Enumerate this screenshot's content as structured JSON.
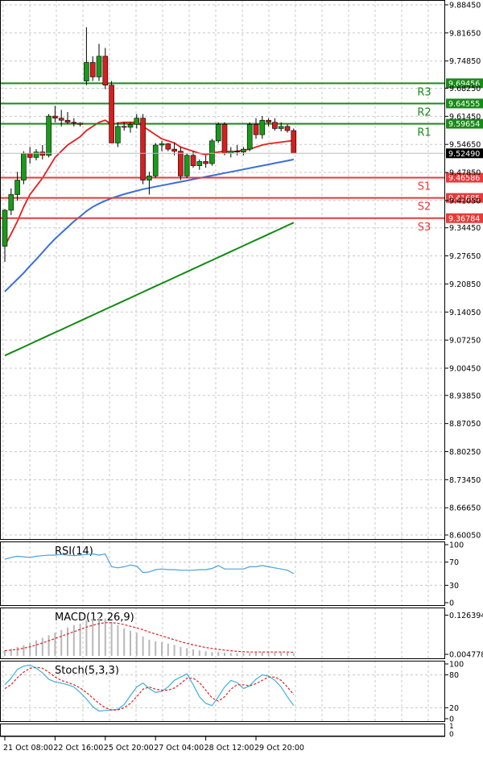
{
  "chart_data": {
    "type": "candlestick",
    "main": {
      "y_ticks": [
        "9.88450",
        "9.81650",
        "9.74850",
        "9.68250",
        "9.61450",
        "9.54650",
        "9.47850",
        "9.41050",
        "9.34450",
        "9.27650",
        "9.20850",
        "9.14050",
        "9.07250",
        "9.00450",
        "8.93850",
        "8.87050",
        "8.80250",
        "8.73450",
        "8.66650",
        "8.60050"
      ],
      "ylim": [
        8.6005,
        9.8845
      ],
      "last_price": "9.52490",
      "levels": [
        {
          "name": "R3",
          "value": 9.69456,
          "label": "9.69456",
          "kind": "resistance"
        },
        {
          "name": "R2",
          "value": 9.64555,
          "label": "9.64555",
          "kind": "resistance"
        },
        {
          "name": "R1",
          "value": 9.59654,
          "label": "9.59654",
          "kind": "resistance"
        },
        {
          "name": "S1",
          "value": 9.46586,
          "label": "9.46586",
          "kind": "support"
        },
        {
          "name": "S2",
          "value": 9.41685,
          "label": "9.41685",
          "kind": "support"
        },
        {
          "name": "S3",
          "value": 9.36784,
          "label": "9.36784",
          "kind": "support"
        }
      ],
      "candles": [
        [
          9.3,
          9.39,
          9.262,
          9.387
        ],
        [
          9.387,
          9.44,
          9.375,
          9.425
        ],
        [
          9.425,
          9.48,
          9.41,
          9.46
        ],
        [
          9.46,
          9.53,
          9.45,
          9.525
        ],
        [
          9.525,
          9.54,
          9.5,
          9.515
        ],
        [
          9.515,
          9.535,
          9.508,
          9.528
        ],
        [
          9.528,
          9.545,
          9.51,
          9.52
        ],
        [
          9.52,
          9.62,
          9.515,
          9.615
        ],
        [
          9.615,
          9.64,
          9.6,
          9.61
        ],
        [
          9.61,
          9.63,
          9.59,
          9.605
        ],
        [
          9.605,
          9.625,
          9.595,
          9.6
        ],
        [
          9.6,
          9.61,
          9.59,
          9.598
        ],
        [
          9.598,
          9.6,
          9.59,
          9.595
        ],
        [
          9.7,
          9.83,
          9.69,
          9.745
        ],
        [
          9.745,
          9.76,
          9.7,
          9.71
        ],
        [
          9.71,
          9.79,
          9.7,
          9.76
        ],
        [
          9.76,
          9.78,
          9.68,
          9.69
        ],
        [
          9.69,
          9.7,
          9.55,
          9.55
        ],
        [
          9.55,
          9.6,
          9.54,
          9.59
        ],
        [
          9.59,
          9.6,
          9.58,
          9.588
        ],
        [
          9.588,
          9.6,
          9.575,
          9.595
        ],
        [
          9.595,
          9.62,
          9.585,
          9.61
        ],
        [
          9.61,
          9.62,
          9.45,
          9.46
        ],
        [
          9.46,
          9.48,
          9.425,
          9.47
        ],
        [
          9.47,
          9.55,
          9.465,
          9.545
        ],
        [
          9.545,
          9.555,
          9.53,
          9.548
        ],
        [
          9.548,
          9.55,
          9.53,
          9.535
        ],
        [
          9.535,
          9.55,
          9.52,
          9.53
        ],
        [
          9.53,
          9.54,
          9.46,
          9.47
        ],
        [
          9.47,
          9.525,
          9.465,
          9.52
        ],
        [
          9.52,
          9.53,
          9.49,
          9.495
        ],
        [
          9.495,
          9.51,
          9.485,
          9.505
        ],
        [
          9.505,
          9.52,
          9.49,
          9.5
        ],
        [
          9.5,
          9.56,
          9.495,
          9.555
        ],
        [
          9.555,
          9.6,
          9.55,
          9.595
        ],
        [
          9.595,
          9.6,
          9.52,
          9.525
        ],
        [
          9.525,
          9.54,
          9.515,
          9.53
        ],
        [
          9.53,
          9.545,
          9.52,
          9.528
        ],
        [
          9.528,
          9.54,
          9.52,
          9.535
        ],
        [
          9.535,
          9.6,
          9.53,
          9.595
        ],
        [
          9.595,
          9.61,
          9.56,
          9.57
        ],
        [
          9.57,
          9.615,
          9.56,
          9.605
        ],
        [
          9.605,
          9.61,
          9.59,
          9.6
        ],
        [
          9.6,
          9.61,
          9.58,
          9.585
        ],
        [
          9.585,
          9.6,
          9.578,
          9.59
        ],
        [
          9.59,
          9.595,
          9.575,
          9.58
        ],
        [
          9.58,
          9.585,
          9.525,
          9.525
        ]
      ],
      "ma_red": [
        9.3,
        9.33,
        9.36,
        9.395,
        9.425,
        9.445,
        9.465,
        9.49,
        9.515,
        9.53,
        9.545,
        9.555,
        9.565,
        9.58,
        9.59,
        9.6,
        9.605,
        9.595,
        9.598,
        9.6,
        9.6,
        9.6,
        9.59,
        9.58,
        9.57,
        9.56,
        9.555,
        9.55,
        9.54,
        9.535,
        9.53,
        9.525,
        9.522,
        9.525,
        9.528,
        9.53,
        9.528,
        9.53,
        9.532,
        9.535,
        9.54,
        9.545,
        9.548,
        9.55,
        9.552,
        9.554,
        9.556
      ],
      "ma_blue": [
        9.19,
        9.205,
        9.22,
        9.235,
        9.252,
        9.268,
        9.285,
        9.302,
        9.318,
        9.332,
        9.346,
        9.36,
        9.372,
        9.385,
        9.395,
        9.403,
        9.41,
        9.416,
        9.421,
        9.426,
        9.43,
        9.434,
        9.438,
        9.441,
        9.444,
        9.447,
        9.45,
        9.453,
        9.456,
        9.459,
        9.462,
        9.465,
        9.468,
        9.471,
        9.474,
        9.477,
        9.48,
        9.483,
        9.486,
        9.489,
        9.492,
        9.495,
        9.498,
        9.501,
        9.504,
        9.507,
        9.51
      ],
      "ma_green": [
        9.035,
        9.042,
        9.049,
        9.056,
        9.063,
        9.07,
        9.077,
        9.084,
        9.091,
        9.098,
        9.105,
        9.112,
        9.119,
        9.126,
        9.133,
        9.14,
        9.147,
        9.154,
        9.161,
        9.168,
        9.175,
        9.182,
        9.189,
        9.196,
        9.203,
        9.21,
        9.217,
        9.224,
        9.231,
        9.238,
        9.245,
        9.252,
        9.259,
        9.266,
        9.273,
        9.28,
        9.287,
        9.294,
        9.301,
        9.308,
        9.315,
        9.322,
        9.329,
        9.336,
        9.343,
        9.35,
        9.357
      ]
    },
    "rsi": {
      "title": "RSI(14)",
      "y_ticks": [
        "100",
        "70",
        "30",
        "0"
      ],
      "ylim": [
        0,
        100
      ],
      "values": [
        75,
        78,
        80,
        79,
        78,
        80,
        81,
        82,
        82,
        83,
        82,
        81,
        82,
        83,
        84,
        82,
        84,
        62,
        60,
        62,
        65,
        63,
        52,
        53,
        57,
        58,
        57,
        57,
        56,
        56,
        56,
        57,
        57,
        59,
        64,
        58,
        58,
        58,
        58,
        62,
        62,
        64,
        62,
        60,
        58,
        56,
        50
      ]
    },
    "macd": {
      "title": "MACD(12,26,9)",
      "y_ticks": [
        "0.126394",
        "0.004778"
      ],
      "ylim": [
        0,
        0.14
      ],
      "hist": [
        0.018,
        0.022,
        0.028,
        0.033,
        0.04,
        0.048,
        0.056,
        0.064,
        0.072,
        0.08,
        0.088,
        0.095,
        0.1,
        0.11,
        0.116,
        0.118,
        0.116,
        0.105,
        0.095,
        0.086,
        0.078,
        0.072,
        0.06,
        0.05,
        0.045,
        0.042,
        0.038,
        0.034,
        0.028,
        0.024,
        0.02,
        0.017,
        0.014,
        0.012,
        0.012,
        0.01,
        0.009,
        0.008,
        0.008,
        0.009,
        0.01,
        0.011,
        0.011,
        0.011,
        0.011,
        0.01,
        0.008
      ],
      "signal": [
        0.016,
        0.018,
        0.02,
        0.024,
        0.028,
        0.034,
        0.04,
        0.047,
        0.054,
        0.061,
        0.068,
        0.075,
        0.082,
        0.089,
        0.095,
        0.1,
        0.103,
        0.103,
        0.101,
        0.097,
        0.092,
        0.087,
        0.081,
        0.074,
        0.068,
        0.062,
        0.056,
        0.05,
        0.044,
        0.039,
        0.034,
        0.03,
        0.026,
        0.023,
        0.02,
        0.018,
        0.016,
        0.014,
        0.013,
        0.012,
        0.012,
        0.012,
        0.012,
        0.012,
        0.012,
        0.012,
        0.011
      ]
    },
    "stoch": {
      "title": "Stoch(5,3,3)",
      "y_ticks": [
        "100",
        "80",
        "20",
        "0"
      ],
      "ylim": [
        0,
        100
      ],
      "k": [
        62,
        74,
        90,
        96,
        98,
        92,
        84,
        72,
        67,
        65,
        62,
        58,
        48,
        36,
        22,
        14,
        15,
        16,
        17,
        26,
        42,
        58,
        65,
        55,
        48,
        50,
        58,
        70,
        76,
        82,
        62,
        40,
        28,
        24,
        40,
        58,
        70,
        66,
        55,
        60,
        72,
        80,
        78,
        70,
        58,
        40,
        24
      ],
      "d": [
        55,
        62,
        75,
        85,
        92,
        94,
        92,
        85,
        76,
        70,
        66,
        62,
        56,
        48,
        38,
        28,
        20,
        16,
        16,
        20,
        28,
        40,
        54,
        58,
        54,
        52,
        52,
        56,
        64,
        74,
        74,
        66,
        52,
        38,
        32,
        40,
        54,
        62,
        62,
        60,
        64,
        70,
        76,
        76,
        70,
        58,
        44
      ]
    },
    "x_labels": [
      {
        "label": "21 Oct 08:00",
        "index": 0
      },
      {
        "label": "22 Oct 16:00",
        "index": 8
      },
      {
        "label": "25 Oct 20:00",
        "index": 16
      },
      {
        "label": "27 Oct 04:00",
        "index": 24
      },
      {
        "label": "28 Oct 12:00",
        "index": 32
      },
      {
        "label": "29 Oct 20:00",
        "index": 40
      }
    ],
    "colors": {
      "bull": "#1a9a1a",
      "bear": "#d81e1e",
      "wick": "#000000",
      "ma_red": "#e81c1c",
      "ma_blue": "#3a6fd8",
      "ma_green": "#128a12",
      "resistance": "#1a8a1a",
      "support": "#e83a3a",
      "rsi_line": "#4aa0e0",
      "macd_hist": "#b8b8b8",
      "macd_signal": "#e02020",
      "stoch_k": "#3ab0e0",
      "stoch_d": "#e02020",
      "grid": "#c8c8c8"
    }
  }
}
